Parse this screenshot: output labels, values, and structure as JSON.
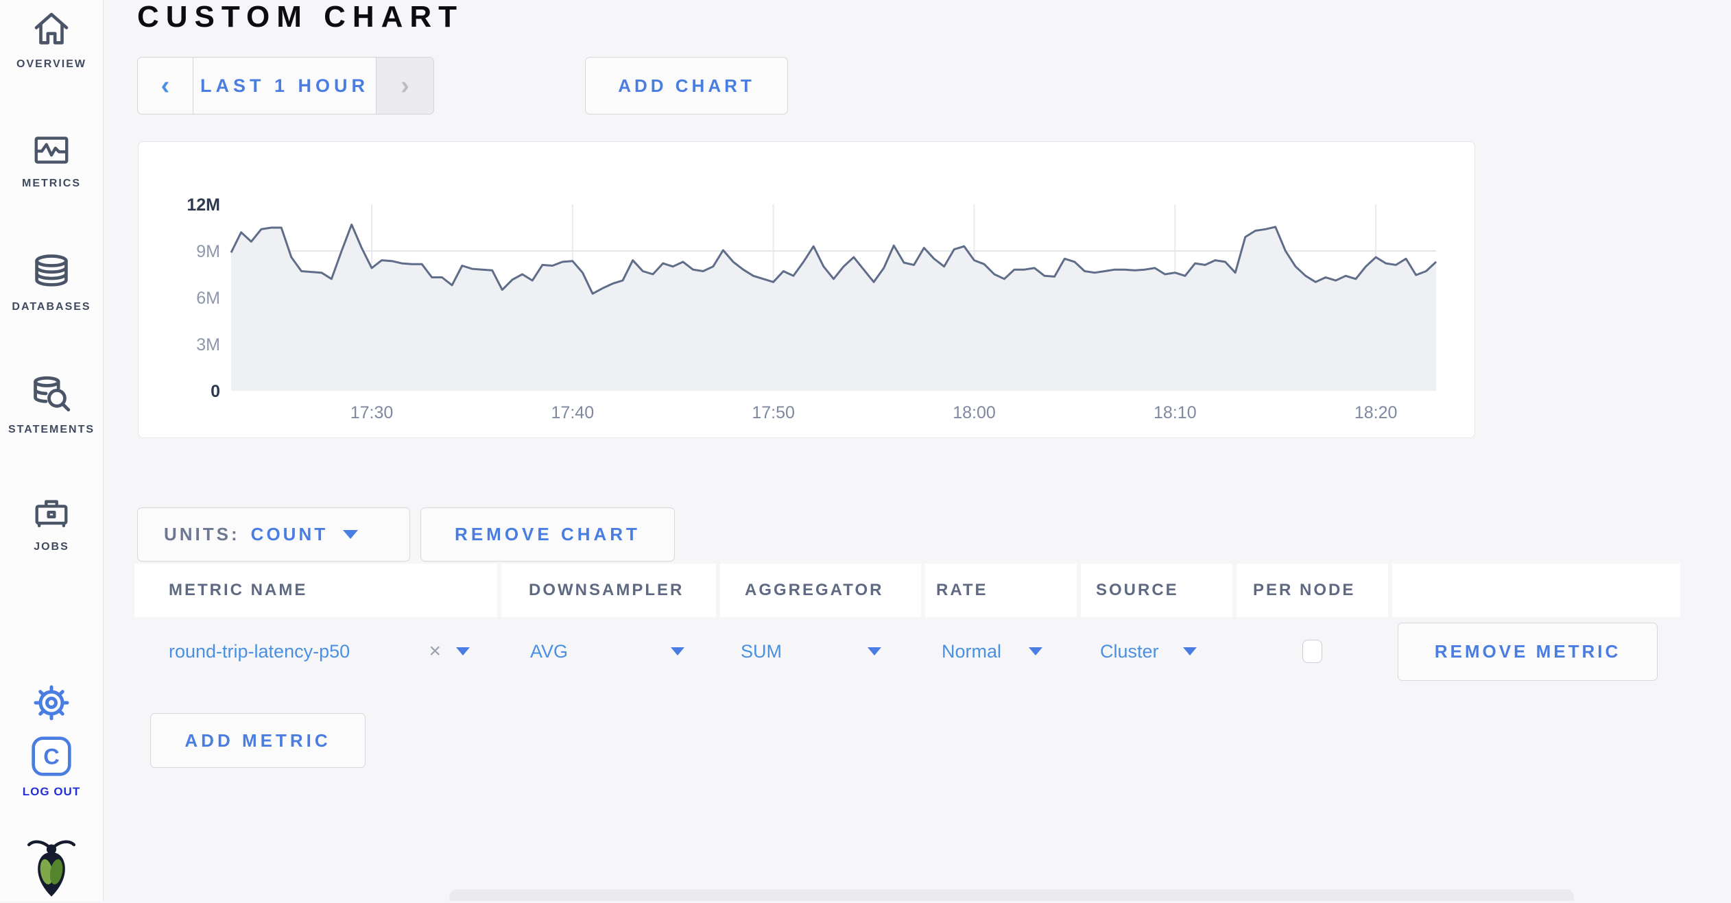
{
  "colors": {
    "accent_blue": "#4a7de1",
    "logout_blue": "#2330d4",
    "sidebar_slate": "#3f4a5f"
  },
  "sidebar": {
    "items": [
      {
        "label": "OVERVIEW",
        "icon": "home-icon"
      },
      {
        "label": "METRICS",
        "icon": "metrics-icon"
      },
      {
        "label": "DATABASES",
        "icon": "databases-icon"
      },
      {
        "label": "STATEMENTS",
        "icon": "statements-icon"
      },
      {
        "label": "JOBS",
        "icon": "jobs-icon"
      }
    ],
    "logout_label": "LOG OUT"
  },
  "header": {
    "title": "CUSTOM CHART"
  },
  "toolbar": {
    "time_range_label": "LAST 1 HOUR",
    "prev_glyph": "‹",
    "next_glyph": "›",
    "add_chart_label": "ADD CHART"
  },
  "chart_controls": {
    "units_label": "UNITS:",
    "units_value": "COUNT",
    "remove_chart_label": "REMOVE CHART",
    "add_metric_label": "ADD METRIC"
  },
  "metrics_table": {
    "columns": [
      "METRIC NAME",
      "DOWNSAMPLER",
      "AGGREGATOR",
      "RATE",
      "SOURCE",
      "PER NODE"
    ],
    "rows": [
      {
        "metric_name": "round-trip-latency-p50",
        "downsampler": "AVG",
        "aggregator": "SUM",
        "rate": "Normal",
        "source": "Cluster",
        "per_node_checked": false,
        "remove_label": "REMOVE METRIC"
      }
    ]
  },
  "chart_data": {
    "type": "area",
    "title": "",
    "xlabel": "",
    "ylabel": "",
    "ylim": [
      0,
      12
    ],
    "unit_suffix": "M",
    "grid": true,
    "x_range_minutes": 60,
    "x_step_minutes": 0.5,
    "x_start_label": "17:23",
    "x_ticks": [
      {
        "label": "17:30",
        "minute": 7
      },
      {
        "label": "17:40",
        "minute": 17
      },
      {
        "label": "17:50",
        "minute": 27
      },
      {
        "label": "18:00",
        "minute": 37
      },
      {
        "label": "18:10",
        "minute": 47
      },
      {
        "label": "18:20",
        "minute": 57
      }
    ],
    "y_ticks": [
      {
        "label": "0",
        "value": 0,
        "emphasis": true
      },
      {
        "label": "3M",
        "value": 3,
        "emphasis": false
      },
      {
        "label": "6M",
        "value": 6,
        "emphasis": false
      },
      {
        "label": "9M",
        "value": 9,
        "emphasis": false
      },
      {
        "label": "12M",
        "value": 12,
        "emphasis": true
      }
    ],
    "line_color": "#5f6d89",
    "fill_color": "#eef0f4",
    "series": [
      {
        "name": "round-trip-latency-p50",
        "values_millions": [
          8.9,
          10.2,
          9.6,
          10.4,
          10.5,
          10.5,
          8.6,
          7.7,
          7.65,
          7.6,
          7.2,
          9.0,
          10.7,
          9.2,
          7.9,
          8.4,
          8.35,
          8.2,
          8.15,
          8.15,
          7.3,
          7.3,
          6.8,
          8.05,
          7.85,
          7.8,
          7.75,
          6.5,
          7.15,
          7.5,
          7.1,
          8.1,
          8.05,
          8.3,
          8.35,
          7.6,
          6.25,
          6.6,
          6.9,
          7.1,
          8.4,
          7.7,
          7.5,
          8.2,
          8.0,
          8.3,
          7.8,
          7.7,
          8.0,
          9.05,
          8.3,
          7.8,
          7.4,
          7.2,
          7.0,
          7.7,
          7.4,
          8.3,
          9.3,
          8.0,
          7.2,
          8.0,
          8.6,
          7.8,
          7.0,
          7.9,
          9.35,
          8.25,
          8.1,
          9.2,
          8.5,
          8.0,
          9.1,
          9.3,
          8.4,
          8.15,
          7.5,
          7.2,
          7.8,
          7.8,
          7.9,
          7.4,
          7.35,
          8.5,
          8.3,
          7.7,
          7.6,
          7.7,
          7.8,
          7.8,
          7.75,
          7.8,
          7.9,
          7.5,
          7.6,
          7.4,
          8.2,
          8.1,
          8.4,
          8.3,
          7.6,
          9.9,
          10.3,
          10.4,
          10.55,
          9.0,
          8.0,
          7.4,
          7.0,
          7.3,
          7.1,
          7.4,
          7.2,
          8.0,
          8.6,
          8.2,
          8.1,
          8.5,
          7.45,
          7.7,
          8.3
        ]
      }
    ]
  }
}
